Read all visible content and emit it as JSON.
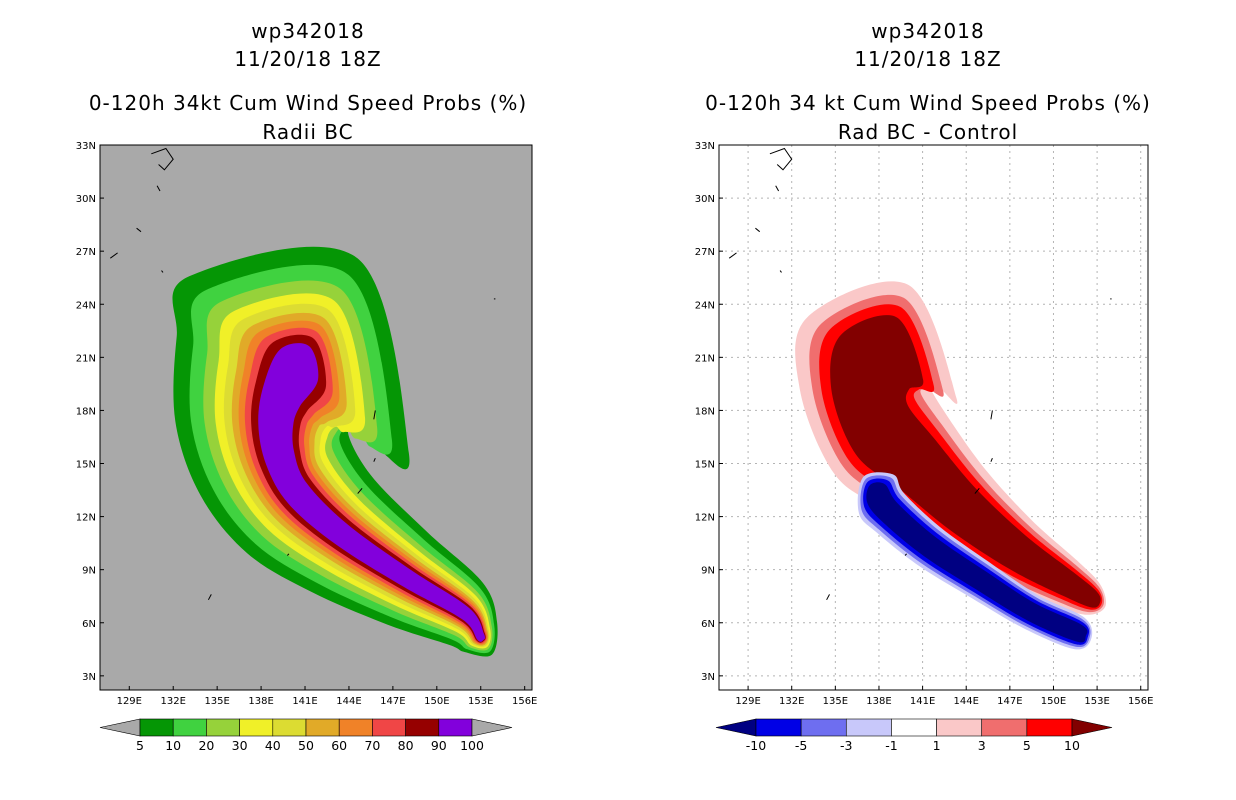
{
  "chart_data": [
    {
      "type": "heatmap",
      "name": "left-panel",
      "title_lines": [
        "wp342018",
        "11/20/18 18Z",
        "0-120h 34kt Cum Wind Speed Probs (%)",
        "Radii BC"
      ],
      "lon_ticks": [
        129,
        132,
        135,
        138,
        141,
        144,
        147,
        150,
        153,
        156
      ],
      "lat_ticks": [
        3,
        6,
        9,
        12,
        15,
        18,
        21,
        24,
        27,
        30,
        33
      ],
      "lon_labels": [
        "129E",
        "132E",
        "135E",
        "138E",
        "141E",
        "144E",
        "147E",
        "150E",
        "153E",
        "156E"
      ],
      "lat_labels": [
        "3N",
        "6N",
        "9N",
        "12N",
        "15N",
        "18N",
        "21N",
        "24N",
        "27N",
        "30N",
        "33N"
      ],
      "xlim": [
        127.0,
        156.5
      ],
      "ylim": [
        2.2,
        33.0
      ],
      "background": "#a9a9a9",
      "grid": false,
      "colorbar": {
        "labels": [
          "5",
          "10",
          "20",
          "30",
          "40",
          "50",
          "60",
          "70",
          "80",
          "90",
          "100"
        ],
        "colors": [
          "#059605",
          "#40d240",
          "#96d23a",
          "#f0f028",
          "#dcdc32",
          "#e1aa28",
          "#f08228",
          "#f04646",
          "#960000",
          "#8200dc"
        ],
        "below_color": "#a9a9a9",
        "above_color": "#a9a9a9"
      },
      "track": [
        [
          153.0,
          5.2
        ],
        [
          152.0,
          6.5
        ],
        [
          148.0,
          8.5
        ],
        [
          143.5,
          11.0
        ],
        [
          140.5,
          13.3
        ],
        [
          139.3,
          15.3
        ],
        [
          139.0,
          17.2
        ],
        [
          139.4,
          18.8
        ],
        [
          140.6,
          20.6
        ]
      ],
      "contours": [
        {
          "value": 5,
          "color": "#059605",
          "head": 9.0,
          "tail": 1.4
        },
        {
          "value": 10,
          "color": "#40d240",
          "head": 7.6,
          "tail": 1.15
        },
        {
          "value": 20,
          "color": "#96d23a",
          "head": 6.4,
          "tail": 0.95
        },
        {
          "value": 30,
          "color": "#f0f028",
          "head": 5.4,
          "tail": 0.8
        },
        {
          "value": 40,
          "color": "#dcdc32",
          "head": 4.6,
          "tail": 0.68
        },
        {
          "value": 50,
          "color": "#e1aa28",
          "head": 3.9,
          "tail": 0.58
        },
        {
          "value": 60,
          "color": "#f08228",
          "head": 3.3,
          "tail": 0.5
        },
        {
          "value": 70,
          "color": "#f04646",
          "head": 2.75,
          "tail": 0.42
        },
        {
          "value": 80,
          "color": "#960000",
          "head": 2.2,
          "tail": 0.35
        },
        {
          "value": 90,
          "color": "#8200dc",
          "head": 1.55,
          "tail": 0.28
        }
      ]
    },
    {
      "type": "heatmap",
      "name": "right-panel",
      "title_lines": [
        "wp342018",
        "11/20/18 18Z",
        "0-120h 34 kt Cum Wind Speed Probs (%)",
        "Rad BC - Control"
      ],
      "lon_ticks": [
        129,
        132,
        135,
        138,
        141,
        144,
        147,
        150,
        153,
        156
      ],
      "lat_ticks": [
        3,
        6,
        9,
        12,
        15,
        18,
        21,
        24,
        27,
        30,
        33
      ],
      "lon_labels": [
        "129E",
        "132E",
        "135E",
        "138E",
        "141E",
        "144E",
        "147E",
        "150E",
        "153E",
        "156E"
      ],
      "lat_labels": [
        "3N",
        "6N",
        "9N",
        "12N",
        "15N",
        "18N",
        "21N",
        "24N",
        "27N",
        "30N",
        "33N"
      ],
      "xlim": [
        127.0,
        156.5
      ],
      "ylim": [
        2.2,
        33.0
      ],
      "background": "#ffffff",
      "grid": true,
      "colorbar": {
        "labels": [
          "-10",
          "-5",
          "-3",
          "-1",
          "1",
          "3",
          "5",
          "10"
        ],
        "colors": [
          "#0000e6",
          "#6e6ef0",
          "#c8c8fa",
          "#ffffff",
          "#fac8c8",
          "#f06e6e",
          "#ff0000"
        ],
        "below_color": "#000082",
        "above_color": "#820000"
      },
      "pos_track": [
        [
          152.8,
          7.3
        ],
        [
          151.0,
          8.2
        ],
        [
          147.5,
          10.0
        ],
        [
          143.8,
          12.4
        ],
        [
          140.6,
          15.0
        ],
        [
          138.2,
          16.9
        ],
        [
          137.4,
          19.2
        ],
        [
          138.2,
          21.0
        ]
      ],
      "pos_contours": [
        {
          "value": 1,
          "color": "#fac8c8",
          "head": 5.6,
          "tail": 0.95
        },
        {
          "value": 3,
          "color": "#f06e6e",
          "head": 4.6,
          "tail": 0.78
        },
        {
          "value": 5,
          "color": "#ff0000",
          "head": 3.9,
          "tail": 0.62
        },
        {
          "value": 10,
          "color": "#820000",
          "head": 3.1,
          "tail": 0.48
        }
      ],
      "neg_track": [
        [
          151.8,
          5.4
        ],
        [
          148.5,
          6.6
        ],
        [
          145.0,
          8.4
        ],
        [
          141.5,
          10.3
        ],
        [
          138.8,
          12.2
        ],
        [
          137.8,
          13.3
        ]
      ],
      "neg_contours": [
        {
          "value": -1,
          "color": "#c8c8fa",
          "head": 1.6,
          "tail": 0.95
        },
        {
          "value": -3,
          "color": "#6e6ef0",
          "head": 1.35,
          "tail": 0.8
        },
        {
          "value": -5,
          "color": "#0000e6",
          "head": 1.1,
          "tail": 0.66
        },
        {
          "value": -10,
          "color": "#000082",
          "head": 0.8,
          "tail": 0.5
        }
      ]
    }
  ],
  "islands": [
    {
      "name": "kyushu-islands",
      "pts": [
        [
          130.5,
          32.5
        ],
        [
          131.5,
          32.8
        ],
        [
          132.0,
          32.2
        ],
        [
          131.4,
          31.6
        ],
        [
          131.0,
          31.9
        ]
      ]
    },
    {
      "name": "osumi",
      "pts": [
        [
          130.9,
          30.7
        ],
        [
          131.1,
          30.4
        ]
      ]
    },
    {
      "name": "amami",
      "pts": [
        [
          129.5,
          28.3
        ],
        [
          129.8,
          28.1
        ]
      ]
    },
    {
      "name": "okinawa",
      "pts": [
        [
          127.7,
          26.6
        ],
        [
          128.2,
          26.9
        ]
      ]
    },
    {
      "name": "daito",
      "pts": [
        [
          131.2,
          25.9
        ],
        [
          131.3,
          25.8
        ]
      ]
    },
    {
      "name": "marcus",
      "pts": [
        [
          153.9,
          24.3
        ],
        [
          154.0,
          24.3
        ]
      ]
    },
    {
      "name": "mariana-north",
      "pts": [
        [
          145.7,
          17.5
        ],
        [
          145.8,
          18.0
        ]
      ]
    },
    {
      "name": "saipan",
      "pts": [
        [
          145.7,
          15.1
        ],
        [
          145.8,
          15.3
        ]
      ]
    },
    {
      "name": "guam",
      "pts": [
        [
          144.6,
          13.3
        ],
        [
          144.9,
          13.6
        ]
      ]
    },
    {
      "name": "ulithi",
      "pts": [
        [
          139.8,
          9.8
        ],
        [
          139.9,
          9.9
        ]
      ]
    },
    {
      "name": "palau",
      "pts": [
        [
          134.4,
          7.3
        ],
        [
          134.6,
          7.6
        ]
      ]
    }
  ]
}
